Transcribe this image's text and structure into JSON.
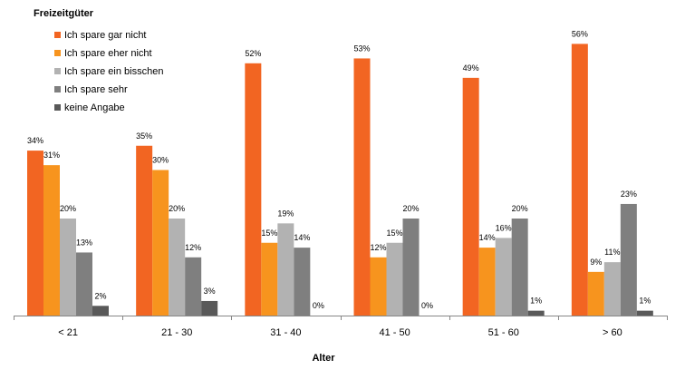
{
  "chart_data": {
    "type": "bar",
    "title": "Freizeitgüter",
    "xlabel": "Alter",
    "ylabel": "",
    "ylim": [
      0,
      60
    ],
    "grid": false,
    "legend_position": "top-left",
    "categories": [
      "< 21",
      "21 - 30",
      "31 - 40",
      "41 - 50",
      "51 - 60",
      "> 60"
    ],
    "series": [
      {
        "name": "Ich spare gar nicht",
        "color": "#F26522",
        "values": [
          34,
          35,
          52,
          53,
          49,
          56
        ],
        "labels": [
          "34%",
          "35%",
          "52%",
          "53%",
          "49%",
          "56%"
        ]
      },
      {
        "name": "Ich spare eher nicht",
        "color": "#F7941E",
        "values": [
          31,
          30,
          15,
          12,
          14,
          9
        ],
        "labels": [
          "31%",
          "30%",
          "15%",
          "12%",
          "14%",
          "9%"
        ]
      },
      {
        "name": "Ich spare ein bisschen",
        "color": "#B2B2B2",
        "values": [
          20,
          20,
          19,
          15,
          16,
          11
        ],
        "labels": [
          "20%",
          "20%",
          "19%",
          "15%",
          "16%",
          "11%"
        ]
      },
      {
        "name": "Ich spare sehr",
        "color": "#7F7F7F",
        "values": [
          13,
          12,
          14,
          20,
          20,
          23
        ],
        "labels": [
          "13%",
          "12%",
          "14%",
          "20%",
          "20%",
          "23%"
        ]
      },
      {
        "name": "keine Angabe",
        "color": "#595959",
        "values": [
          2,
          3,
          0,
          0,
          1,
          1
        ],
        "labels": [
          "2%",
          "3%",
          "0%",
          "0%",
          "1%",
          "1%"
        ]
      }
    ]
  }
}
